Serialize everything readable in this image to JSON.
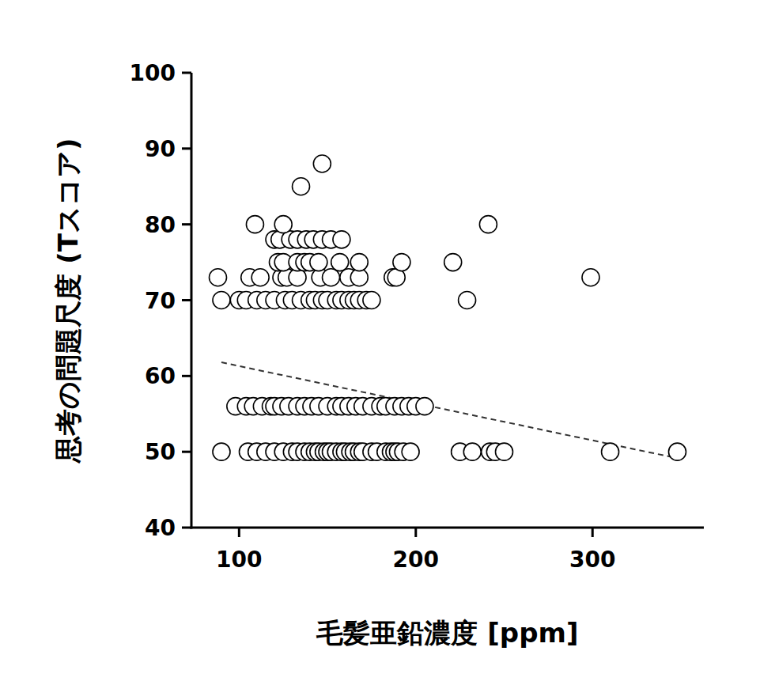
{
  "chart_data": {
    "type": "scatter",
    "x_label": "毛髪亜鉛濃度 [ppm]",
    "y_label": "思考の問題尺度 (Tスコア)",
    "xlim": [
      73,
      363
    ],
    "ylim": [
      40,
      100
    ],
    "xticks": [
      100,
      200,
      300
    ],
    "yticks": [
      40,
      50,
      60,
      70,
      80,
      90,
      100
    ],
    "grid": false,
    "series": [
      {
        "type": "scatter",
        "marker": "circle",
        "color": "#000000",
        "x": [
          90,
          105,
          110,
          115,
          120,
          125,
          130,
          133,
          137,
          140,
          143,
          145,
          148,
          150,
          152,
          155,
          158,
          160,
          163,
          165,
          168,
          170,
          175,
          178,
          183,
          186,
          188,
          190,
          193,
          197,
          225,
          232,
          242,
          245,
          250,
          310,
          348,
          98,
          104,
          108,
          113,
          118,
          120,
          124,
          128,
          133,
          137,
          141,
          145,
          150,
          155,
          158,
          162,
          166,
          170,
          175,
          180,
          183,
          188,
          192,
          196,
          200,
          205,
          90,
          100,
          104,
          110,
          115,
          120,
          126,
          130,
          135,
          140,
          143,
          147,
          150,
          155,
          158,
          162,
          165,
          168,
          172,
          175,
          229,
          88,
          106,
          112,
          124,
          127,
          133,
          146,
          152,
          162,
          168,
          187,
          189,
          299,
          122,
          125,
          133,
          137,
          140,
          145,
          157,
          168,
          192,
          221,
          120,
          123,
          129,
          133,
          138,
          142,
          147,
          152,
          158,
          109,
          125,
          241,
          135,
          147
        ],
        "values": [
          50,
          50,
          50,
          50,
          50,
          50,
          50,
          50,
          50,
          50,
          50,
          50,
          50,
          50,
          50,
          50,
          50,
          50,
          50,
          50,
          50,
          50,
          50,
          50,
          50,
          50,
          50,
          50,
          50,
          50,
          50,
          50,
          50,
          50,
          50,
          50,
          50,
          56,
          56,
          56,
          56,
          56,
          56,
          56,
          56,
          56,
          56,
          56,
          56,
          56,
          56,
          56,
          56,
          56,
          56,
          56,
          56,
          56,
          56,
          56,
          56,
          56,
          56,
          70,
          70,
          70,
          70,
          70,
          70,
          70,
          70,
          70,
          70,
          70,
          70,
          70,
          70,
          70,
          70,
          70,
          70,
          70,
          70,
          70,
          73,
          73,
          73,
          73,
          73,
          73,
          73,
          73,
          73,
          73,
          73,
          73,
          73,
          75,
          75,
          75,
          75,
          75,
          75,
          75,
          75,
          75,
          75,
          78,
          78,
          78,
          78,
          78,
          78,
          78,
          78,
          78,
          80,
          80,
          80,
          85,
          88
        ]
      },
      {
        "type": "line",
        "line_style": "dashed",
        "color": "#333333",
        "x": [
          90,
          345
        ],
        "values": [
          61.8,
          49.3
        ]
      }
    ]
  }
}
